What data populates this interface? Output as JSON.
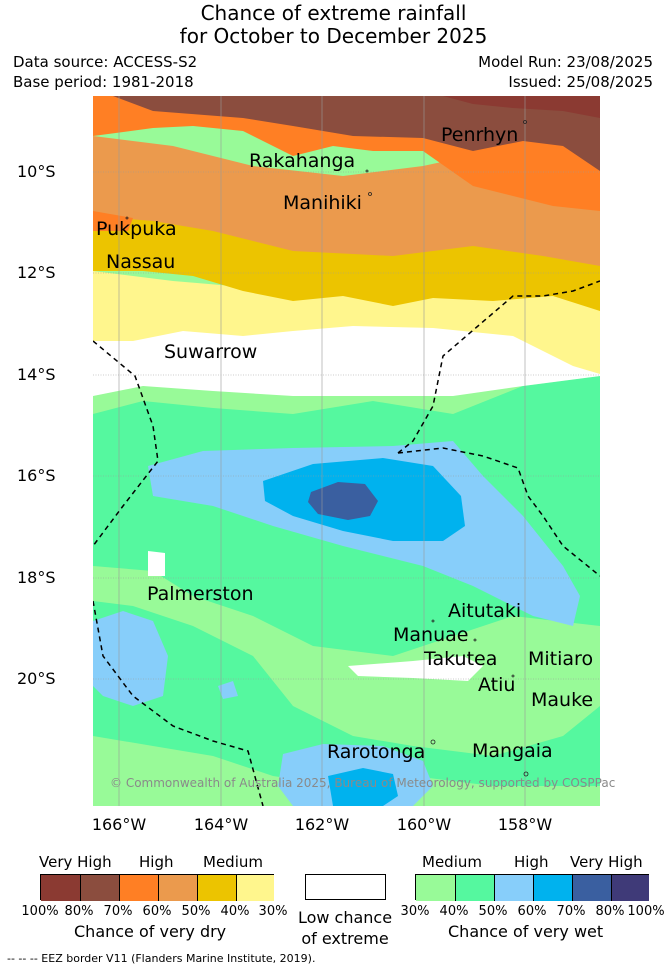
{
  "title_line1": "Chance of extreme rainfall",
  "title_line2": "for October to December 2025",
  "data_source": "Data source: ACCESS-S2",
  "base_period": "Base period: 1981-2018",
  "model_run": "Model Run: 23/08/2025",
  "issued": "Issued: 25/08/2025",
  "y_ticks": [
    "10°S",
    "12°S",
    "14°S",
    "16°S",
    "18°S",
    "20°S"
  ],
  "x_ticks": [
    "166°W",
    "164°W",
    "162°W",
    "160°W",
    "158°W"
  ],
  "places": {
    "penrhyn": "Penrhyn",
    "rakahanga": "Rakahanga",
    "manihiki": "Manihiki",
    "pukapuka": "Pukpuka",
    "nassau": "Nassau",
    "suwarrow": "Suwarrow",
    "palmerston": "Palmerston",
    "aitutaki": "Aitutaki",
    "manuae": "Manuae",
    "takutea": "Takutea",
    "mitiaro": "Mitiaro",
    "atiu": "Atiu",
    "mauke": "Mauke",
    "rarotonga": "Rarotonga",
    "mangaia": "Mangaia"
  },
  "copyright": "© Commonwealth of Australia 2025, Bureau of Meteorology, supported by COSPPac",
  "legend": {
    "dry_levels": [
      "Very High",
      "High",
      "Medium"
    ],
    "dry_colors": [
      "#8b3a32",
      "#8b4d3e",
      "#ff7f24",
      "#eb9a4d",
      "#ecc400",
      "#fff68d"
    ],
    "dry_pcts": [
      "100%",
      "80%",
      "70%",
      "60%",
      "50%",
      "40%",
      "30%"
    ],
    "dry_caption": "Chance of very dry",
    "low_line1": "Low chance",
    "low_line2": "of extreme",
    "wet_levels": [
      "Medium",
      "High",
      "Very High"
    ],
    "wet_colors": [
      "#98fa98",
      "#55f89f",
      "#87cefa",
      "#00b2ee",
      "#3a5fa0",
      "#3f3a78"
    ],
    "wet_pcts": [
      "30%",
      "40%",
      "50%",
      "60%",
      "70%",
      "80%",
      "100%"
    ],
    "wet_caption": "Chance of very wet"
  },
  "eez_note": "-- -- -- EEZ border V11 (Flanders Marine Institute, 2019)."
}
